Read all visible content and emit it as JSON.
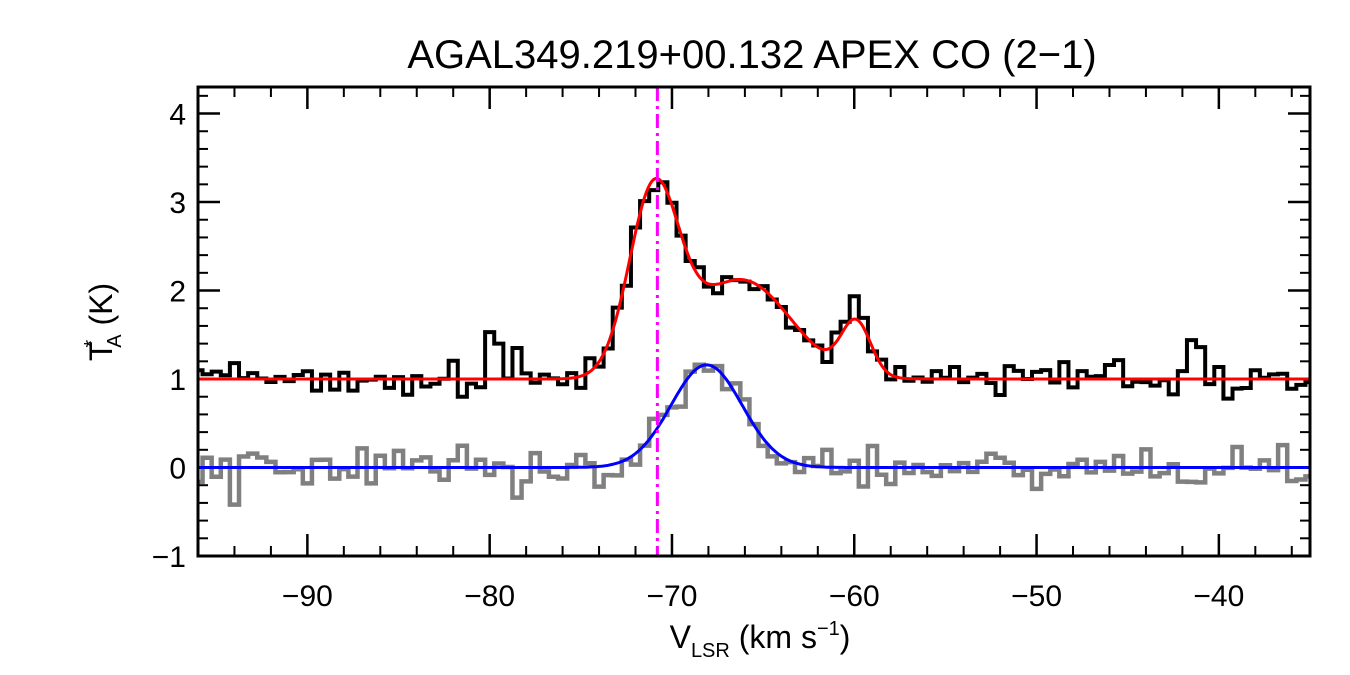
{
  "chart_data": {
    "type": "line",
    "title": "AGAL349.219+00.132  APEX CO (2−1)",
    "xlabel": {
      "main": "V",
      "sub": "LSR",
      "unit": " (km s",
      "exp": "−1",
      "close": ")"
    },
    "ylabel": {
      "main": "T",
      "star": "*",
      "sub": "A",
      "unit": " (K)"
    },
    "xlim": [
      -96,
      -35
    ],
    "ylim": [
      -1.0,
      4.3
    ],
    "x_ticks": [
      -90,
      -80,
      -70,
      -60,
      -50,
      -40
    ],
    "x_tick_labels": [
      "−90",
      "−80",
      "−70",
      "−60",
      "−50",
      "−40"
    ],
    "y_ticks": [
      -1,
      0,
      1,
      2,
      3,
      4
    ],
    "y_tick_labels": [
      "−1",
      "0",
      "1",
      "2",
      "3",
      "4"
    ],
    "x_minor_step": 2,
    "y_minor_step": 0.2,
    "vertical_marker": {
      "x": -70.8,
      "style": "dash-dot",
      "color": "#ff00ff"
    },
    "channel_width_kms": 0.5,
    "series": [
      {
        "style": "histogram",
        "color": "#000000",
        "offset": 1.0,
        "noise_rms": 0.09,
        "components": [
          {
            "amp": 2.02,
            "center": -71.0,
            "fwhm": 3.2
          },
          {
            "amp": 1.12,
            "center": -66.2,
            "fwhm": 6.4
          },
          {
            "amp": 0.6,
            "center": -59.9,
            "fwhm": 1.9
          }
        ],
        "spikes": [
          {
            "x": -79.9,
            "y": 1.53
          },
          {
            "x": -79.4,
            "y": 1.4
          },
          {
            "x": -78.4,
            "y": 1.35
          },
          {
            "x": -41.4,
            "y": 1.44
          },
          {
            "x": -41.0,
            "y": 1.36
          },
          {
            "x": -88.4,
            "y": 0.88
          },
          {
            "x": -81.6,
            "y": 0.8
          },
          {
            "x": -52.1,
            "y": 0.82
          }
        ]
      },
      {
        "style": "histogram",
        "color": "#808080",
        "offset": 0.0,
        "noise_rms": 0.12,
        "components": [
          {
            "amp": 1.16,
            "center": -68.1,
            "fwhm": 4.6
          }
        ],
        "spikes": [
          {
            "x": -93.9,
            "y": -0.42
          },
          {
            "x": -78.6,
            "y": -0.34
          },
          {
            "x": -70.9,
            "y": 0.55
          }
        ]
      },
      {
        "style": "smooth",
        "color": "#ff0000",
        "offset": 1.0,
        "x_step": 0.1,
        "components": [
          {
            "amp": 2.02,
            "center": -71.0,
            "fwhm": 3.2
          },
          {
            "amp": 1.12,
            "center": -66.2,
            "fwhm": 6.4
          },
          {
            "amp": 0.6,
            "center": -59.9,
            "fwhm": 1.9
          }
        ]
      },
      {
        "style": "smooth",
        "color": "#0000ff",
        "offset": 0.0,
        "x_step": 0.1,
        "components": [
          {
            "amp": 1.16,
            "center": -68.1,
            "fwhm": 4.6
          }
        ]
      }
    ]
  }
}
